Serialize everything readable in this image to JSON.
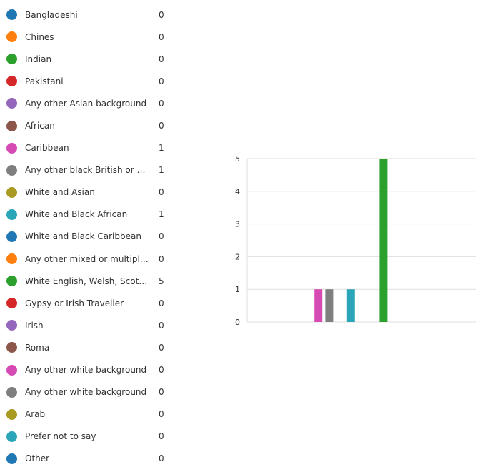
{
  "legend": [
    {
      "label": "Bangladeshi",
      "count": "0",
      "color": "#1f77b4"
    },
    {
      "label": "Chines",
      "count": "0",
      "color": "#ff7f0e"
    },
    {
      "label": "Indian",
      "count": "0",
      "color": "#2ca02c"
    },
    {
      "label": "Pakistani",
      "count": "0",
      "color": "#d62728"
    },
    {
      "label": "Any other Asian background",
      "count": "0",
      "color": "#9467bd"
    },
    {
      "label": "African",
      "count": "0",
      "color": "#8c564b"
    },
    {
      "label": "Caribbean",
      "count": "1",
      "color": "#d64ab4"
    },
    {
      "label": "Any other black British or Carib…",
      "count": "1",
      "color": "#7f7f7f"
    },
    {
      "label": "White and Asian",
      "count": "0",
      "color": "#a89a22"
    },
    {
      "label": "White and Black African",
      "count": "1",
      "color": "#2aa6b8"
    },
    {
      "label": "White and Black Caribbean",
      "count": "0",
      "color": "#1f77b4"
    },
    {
      "label": "Any other mixed or multiple bac…",
      "count": "0",
      "color": "#ff7f0e"
    },
    {
      "label": "White English, Welsh, Scottish, …",
      "count": "5",
      "color": "#2ca02c"
    },
    {
      "label": "Gypsy or Irish Traveller",
      "count": "0",
      "color": "#d62728"
    },
    {
      "label": "Irish",
      "count": "0",
      "color": "#9467bd"
    },
    {
      "label": "Roma",
      "count": "0",
      "color": "#8c564b"
    },
    {
      "label": "Any other white background",
      "count": "0",
      "color": "#d64ab4"
    },
    {
      "label": "Any other white background",
      "count": "0",
      "color": "#7f7f7f"
    },
    {
      "label": "Arab",
      "count": "0",
      "color": "#a89a22"
    },
    {
      "label": "Prefer not to say",
      "count": "0",
      "color": "#2aa6b8"
    },
    {
      "label": "Other",
      "count": "0",
      "color": "#1f77b4"
    }
  ],
  "chart_data": {
    "type": "bar",
    "categories": [
      "Bangladeshi",
      "Chines",
      "Indian",
      "Pakistani",
      "Any other Asian background",
      "African",
      "Caribbean",
      "Any other black British or Carib…",
      "White and Asian",
      "White and Black African",
      "White and Black Caribbean",
      "Any other mixed or multiple bac…",
      "White English, Welsh, Scottish, …",
      "Gypsy or Irish Traveller",
      "Irish",
      "Roma",
      "Any other white background",
      "Any other white background",
      "Arab",
      "Prefer not to say",
      "Other"
    ],
    "values": [
      0,
      0,
      0,
      0,
      0,
      0,
      1,
      1,
      0,
      1,
      0,
      0,
      5,
      0,
      0,
      0,
      0,
      0,
      0,
      0,
      0
    ],
    "colors": [
      "#1f77b4",
      "#ff7f0e",
      "#2ca02c",
      "#d62728",
      "#9467bd",
      "#8c564b",
      "#d64ab4",
      "#7f7f7f",
      "#a89a22",
      "#2aa6b8",
      "#1f77b4",
      "#ff7f0e",
      "#2ca02c",
      "#d62728",
      "#9467bd",
      "#8c564b",
      "#d64ab4",
      "#7f7f7f",
      "#a89a22",
      "#2aa6b8",
      "#1f77b4"
    ],
    "yticks": [
      "0",
      "1",
      "2",
      "3",
      "4",
      "5"
    ],
    "ylim": [
      0,
      5
    ],
    "grid": true,
    "legend_placement": "left"
  }
}
